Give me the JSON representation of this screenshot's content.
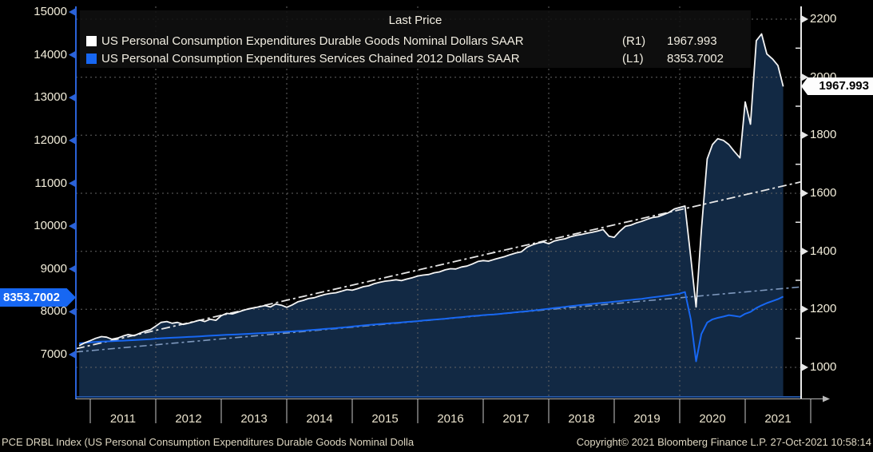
{
  "legend": {
    "title": "Last Price",
    "series": [
      {
        "label": "US Personal Consumption Expenditures Durable Goods Nominal Dollars SAAR",
        "scale": "(R1)",
        "value": "1967.993",
        "color": "#ffffff"
      },
      {
        "label": "US Personal Consumption Expenditures Services Chained 2012 Dollars SAAR",
        "scale": "(L1)",
        "value": "8353.7002",
        "color": "#1767f2"
      }
    ]
  },
  "price_flags": {
    "left": {
      "value": "8353.7002",
      "bg": "#1767f2",
      "text_color": "#ffffff"
    },
    "right": {
      "value": "1967.993",
      "bg": "#fdfdfd",
      "text_color": "#000000"
    }
  },
  "footer": {
    "left": "PCE DRBL Index (US Personal Consumption Expenditures Durable Goods Nominal Dolla",
    "right": "Copyright© 2021 Bloomberg Finance L.P. 27-Oct-2021 10:58:14"
  },
  "colors": {
    "background": "#000000",
    "durables_line": "#f5f5f5",
    "durables_fill": "#122944",
    "services_line": "#1767f2",
    "durables_trend": "#e6e6e6",
    "services_trend": "#7e98bd",
    "grid": "#646464",
    "left_axis": "#2a62d8",
    "right_axis": "#e8e8e8",
    "tick_label": "#f2edda",
    "year_label": "#e9e2cc"
  },
  "chart_data": {
    "type": "line",
    "title": "Last Price",
    "x_axis": {
      "years": [
        2011,
        2012,
        2013,
        2014,
        2015,
        2016,
        2017,
        2018,
        2019,
        2020,
        2021
      ],
      "gridline_years": [
        2012,
        2014,
        2016,
        2018,
        2020
      ],
      "range": [
        2010.78,
        2022.0
      ]
    },
    "left_axis": {
      "label_ticks": [
        15000,
        14000,
        13000,
        12000,
        11000,
        10000,
        9000,
        8000,
        7000
      ],
      "range": [
        7000,
        15000
      ],
      "series": "services"
    },
    "right_axis": {
      "label_ticks": [
        2200,
        2000,
        1800,
        1600,
        1400,
        1200,
        1000
      ],
      "minor_ticks": [
        2100,
        1900,
        1700,
        1500,
        1300,
        1100
      ],
      "range": [
        1000,
        2200
      ],
      "series": "durables"
    },
    "grid": "dotted, horizontal at right-axis 200 steps, vertical every 2 years",
    "legend_position": "top-center",
    "series": [
      {
        "name": "US Personal Consumption Expenditures Durable Goods Nominal Dollars SAAR",
        "axis": "right",
        "last_value": 1967.993,
        "area_fill": true,
        "points": [
          [
            2010.83,
            1075
          ],
          [
            2010.92,
            1085
          ],
          [
            2011,
            1092
          ],
          [
            2011.08,
            1100
          ],
          [
            2011.17,
            1106
          ],
          [
            2011.25,
            1104
          ],
          [
            2011.33,
            1097
          ],
          [
            2011.42,
            1101
          ],
          [
            2011.5,
            1108
          ],
          [
            2011.58,
            1113
          ],
          [
            2011.67,
            1109
          ],
          [
            2011.75,
            1117
          ],
          [
            2011.83,
            1124
          ],
          [
            2011.92,
            1130
          ],
          [
            2012,
            1142
          ],
          [
            2012.08,
            1155
          ],
          [
            2012.17,
            1158
          ],
          [
            2012.25,
            1152
          ],
          [
            2012.33,
            1155
          ],
          [
            2012.42,
            1148
          ],
          [
            2012.5,
            1152
          ],
          [
            2012.58,
            1157
          ],
          [
            2012.67,
            1163
          ],
          [
            2012.75,
            1158
          ],
          [
            2012.83,
            1166
          ],
          [
            2012.92,
            1162
          ],
          [
            2013,
            1178
          ],
          [
            2013.08,
            1186
          ],
          [
            2013.17,
            1184
          ],
          [
            2013.25,
            1190
          ],
          [
            2013.33,
            1196
          ],
          [
            2013.42,
            1202
          ],
          [
            2013.5,
            1205
          ],
          [
            2013.58,
            1209
          ],
          [
            2013.67,
            1213
          ],
          [
            2013.75,
            1208
          ],
          [
            2013.83,
            1218
          ],
          [
            2013.92,
            1214
          ],
          [
            2014,
            1207
          ],
          [
            2014.08,
            1215
          ],
          [
            2014.17,
            1226
          ],
          [
            2014.25,
            1231
          ],
          [
            2014.33,
            1237
          ],
          [
            2014.42,
            1240
          ],
          [
            2014.5,
            1246
          ],
          [
            2014.58,
            1251
          ],
          [
            2014.67,
            1255
          ],
          [
            2014.75,
            1257
          ],
          [
            2014.83,
            1262
          ],
          [
            2014.92,
            1268
          ],
          [
            2015,
            1266
          ],
          [
            2015.08,
            1271
          ],
          [
            2015.17,
            1278
          ],
          [
            2015.25,
            1281
          ],
          [
            2015.33,
            1288
          ],
          [
            2015.42,
            1293
          ],
          [
            2015.5,
            1297
          ],
          [
            2015.58,
            1299
          ],
          [
            2015.67,
            1302
          ],
          [
            2015.75,
            1299
          ],
          [
            2015.83,
            1304
          ],
          [
            2015.92,
            1309
          ],
          [
            2016,
            1315
          ],
          [
            2016.08,
            1318
          ],
          [
            2016.17,
            1320
          ],
          [
            2016.25,
            1326
          ],
          [
            2016.33,
            1329
          ],
          [
            2016.42,
            1336
          ],
          [
            2016.5,
            1340
          ],
          [
            2016.58,
            1339
          ],
          [
            2016.67,
            1346
          ],
          [
            2016.75,
            1349
          ],
          [
            2016.83,
            1356
          ],
          [
            2016.92,
            1365
          ],
          [
            2017,
            1368
          ],
          [
            2017.08,
            1366
          ],
          [
            2017.17,
            1372
          ],
          [
            2017.25,
            1377
          ],
          [
            2017.33,
            1382
          ],
          [
            2017.42,
            1389
          ],
          [
            2017.5,
            1394
          ],
          [
            2017.58,
            1398
          ],
          [
            2017.67,
            1414
          ],
          [
            2017.75,
            1422
          ],
          [
            2017.83,
            1428
          ],
          [
            2017.92,
            1432
          ],
          [
            2018,
            1426
          ],
          [
            2018.08,
            1435
          ],
          [
            2018.17,
            1440
          ],
          [
            2018.25,
            1443
          ],
          [
            2018.33,
            1450
          ],
          [
            2018.42,
            1455
          ],
          [
            2018.5,
            1458
          ],
          [
            2018.58,
            1462
          ],
          [
            2018.67,
            1466
          ],
          [
            2018.75,
            1470
          ],
          [
            2018.83,
            1475
          ],
          [
            2018.92,
            1452
          ],
          [
            2019,
            1448
          ],
          [
            2019.08,
            1468
          ],
          [
            2019.17,
            1486
          ],
          [
            2019.25,
            1490
          ],
          [
            2019.33,
            1497
          ],
          [
            2019.42,
            1503
          ],
          [
            2019.5,
            1510
          ],
          [
            2019.58,
            1516
          ],
          [
            2019.67,
            1519
          ],
          [
            2019.75,
            1526
          ],
          [
            2019.83,
            1533
          ],
          [
            2019.92,
            1546
          ],
          [
            2020,
            1551
          ],
          [
            2020.08,
            1556
          ],
          [
            2020.17,
            1378
          ],
          [
            2020.25,
            1208
          ],
          [
            2020.33,
            1472
          ],
          [
            2020.42,
            1718
          ],
          [
            2020.5,
            1768
          ],
          [
            2020.58,
            1788
          ],
          [
            2020.67,
            1782
          ],
          [
            2020.75,
            1768
          ],
          [
            2020.83,
            1745
          ],
          [
            2020.92,
            1722
          ],
          [
            2021,
            1915
          ],
          [
            2021.08,
            1838
          ],
          [
            2021.17,
            2126
          ],
          [
            2021.25,
            2149
          ],
          [
            2021.33,
            2080
          ],
          [
            2021.42,
            2062
          ],
          [
            2021.5,
            2040
          ],
          [
            2021.58,
            1968
          ]
        ]
      },
      {
        "name": "US Personal Consumption Expenditures Services Chained 2012 Dollars SAAR",
        "axis": "left",
        "last_value": 8353.7002,
        "area_fill": false,
        "points": [
          [
            2010.83,
            7262
          ],
          [
            2010.92,
            7275
          ],
          [
            2011,
            7288
          ],
          [
            2011.08,
            7295
          ],
          [
            2011.17,
            7302
          ],
          [
            2011.25,
            7308
          ],
          [
            2011.33,
            7312
          ],
          [
            2011.42,
            7318
          ],
          [
            2011.5,
            7325
          ],
          [
            2011.58,
            7332
          ],
          [
            2011.67,
            7338
          ],
          [
            2011.75,
            7345
          ],
          [
            2011.83,
            7352
          ],
          [
            2011.92,
            7360
          ],
          [
            2012,
            7372
          ],
          [
            2012.08,
            7380
          ],
          [
            2012.17,
            7388
          ],
          [
            2012.25,
            7394
          ],
          [
            2012.33,
            7400
          ],
          [
            2012.42,
            7406
          ],
          [
            2012.5,
            7412
          ],
          [
            2012.58,
            7418
          ],
          [
            2012.67,
            7425
          ],
          [
            2012.75,
            7432
          ],
          [
            2012.83,
            7440
          ],
          [
            2012.92,
            7448
          ],
          [
            2013,
            7455
          ],
          [
            2013.08,
            7460
          ],
          [
            2013.17,
            7466
          ],
          [
            2013.25,
            7472
          ],
          [
            2013.33,
            7478
          ],
          [
            2013.42,
            7485
          ],
          [
            2013.5,
            7492
          ],
          [
            2013.58,
            7498
          ],
          [
            2013.67,
            7505
          ],
          [
            2013.75,
            7512
          ],
          [
            2013.83,
            7520
          ],
          [
            2013.92,
            7528
          ],
          [
            2014,
            7535
          ],
          [
            2014.08,
            7540
          ],
          [
            2014.17,
            7550
          ],
          [
            2014.25,
            7558
          ],
          [
            2014.33,
            7568
          ],
          [
            2014.42,
            7578
          ],
          [
            2014.5,
            7588
          ],
          [
            2014.58,
            7598
          ],
          [
            2014.67,
            7608
          ],
          [
            2014.75,
            7618
          ],
          [
            2014.83,
            7630
          ],
          [
            2014.92,
            7642
          ],
          [
            2015,
            7655
          ],
          [
            2015.08,
            7668
          ],
          [
            2015.17,
            7680
          ],
          [
            2015.25,
            7692
          ],
          [
            2015.33,
            7702
          ],
          [
            2015.42,
            7712
          ],
          [
            2015.5,
            7722
          ],
          [
            2015.58,
            7732
          ],
          [
            2015.67,
            7742
          ],
          [
            2015.75,
            7752
          ],
          [
            2015.83,
            7762
          ],
          [
            2015.92,
            7772
          ],
          [
            2016,
            7782
          ],
          [
            2016.08,
            7794
          ],
          [
            2016.17,
            7805
          ],
          [
            2016.25,
            7816
          ],
          [
            2016.33,
            7827
          ],
          [
            2016.42,
            7838
          ],
          [
            2016.5,
            7850
          ],
          [
            2016.58,
            7862
          ],
          [
            2016.67,
            7874
          ],
          [
            2016.75,
            7886
          ],
          [
            2016.83,
            7898
          ],
          [
            2016.92,
            7910
          ],
          [
            2017,
            7922
          ],
          [
            2017.08,
            7930
          ],
          [
            2017.17,
            7938
          ],
          [
            2017.25,
            7950
          ],
          [
            2017.33,
            7962
          ],
          [
            2017.42,
            7975
          ],
          [
            2017.5,
            7988
          ],
          [
            2017.58,
            8000
          ],
          [
            2017.67,
            8012
          ],
          [
            2017.75,
            8026
          ],
          [
            2017.83,
            8040
          ],
          [
            2017.92,
            8055
          ],
          [
            2018,
            8070
          ],
          [
            2018.08,
            8085
          ],
          [
            2018.17,
            8100
          ],
          [
            2018.25,
            8115
          ],
          [
            2018.33,
            8130
          ],
          [
            2018.42,
            8145
          ],
          [
            2018.5,
            8158
          ],
          [
            2018.58,
            8172
          ],
          [
            2018.67,
            8185
          ],
          [
            2018.75,
            8198
          ],
          [
            2018.83,
            8210
          ],
          [
            2018.92,
            8222
          ],
          [
            2019,
            8235
          ],
          [
            2019.08,
            8248
          ],
          [
            2019.17,
            8262
          ],
          [
            2019.25,
            8275
          ],
          [
            2019.33,
            8288
          ],
          [
            2019.42,
            8302
          ],
          [
            2019.5,
            8318
          ],
          [
            2019.58,
            8335
          ],
          [
            2019.67,
            8352
          ],
          [
            2019.75,
            8368
          ],
          [
            2019.83,
            8385
          ],
          [
            2019.92,
            8405
          ],
          [
            2020,
            8425
          ],
          [
            2020.08,
            8460
          ],
          [
            2020.17,
            7820
          ],
          [
            2020.25,
            6842
          ],
          [
            2020.33,
            7480
          ],
          [
            2020.42,
            7748
          ],
          [
            2020.5,
            7822
          ],
          [
            2020.58,
            7858
          ],
          [
            2020.67,
            7888
          ],
          [
            2020.75,
            7922
          ],
          [
            2020.83,
            7905
          ],
          [
            2020.92,
            7882
          ],
          [
            2021,
            7952
          ],
          [
            2021.08,
            7995
          ],
          [
            2021.17,
            8088
          ],
          [
            2021.25,
            8148
          ],
          [
            2021.33,
            8202
          ],
          [
            2021.42,
            8252
          ],
          [
            2021.5,
            8295
          ],
          [
            2021.58,
            8353.7
          ]
        ]
      }
    ],
    "trend_lines": [
      {
        "series": "durables",
        "axis": "right",
        "style": "dash-dot",
        "points": [
          [
            2010.78,
            1064
          ],
          [
            2021.85,
            1639
          ]
        ]
      },
      {
        "series": "services",
        "axis": "left",
        "style": "dash-dot",
        "points": [
          [
            2010.78,
            7062
          ],
          [
            2021.85,
            8580
          ]
        ]
      }
    ]
  }
}
